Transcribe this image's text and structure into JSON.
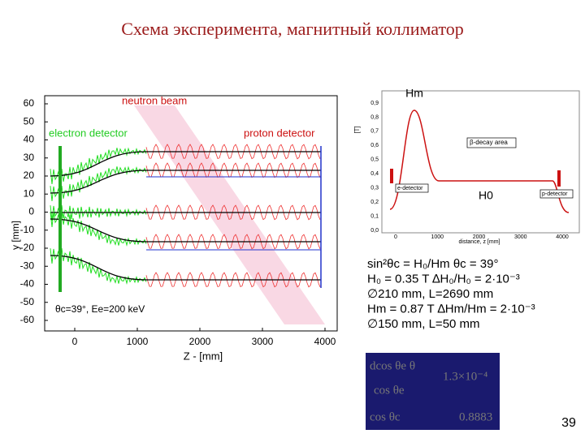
{
  "title": "Схема эксперимента, магнитный коллиматор",
  "left_plot": {
    "yticks": [
      "60",
      "50",
      "40",
      "30",
      "20",
      "10",
      "0",
      "-10",
      "-20",
      "-30",
      "-40",
      "-50",
      "-60"
    ],
    "xticks": [
      "0",
      "1000",
      "2000",
      "3000",
      "4000"
    ],
    "xlabel": "Z - [mm]",
    "ylabel": "y [mm]",
    "neutron_beam": "neutron beam",
    "electron_detector": "electron detector",
    "proton_detector": "proton detector",
    "note": "θc=39°, Ee=200 keV"
  },
  "right_plot": {
    "yticks": [
      "0,9",
      "0,8",
      "0,7",
      "0,6",
      "0,5",
      "0,4",
      "0,3",
      "0,2",
      "0,1",
      "0,0"
    ],
    "xticks": [
      "0",
      "1000",
      "2000",
      "3000",
      "4000"
    ],
    "xlabel": "distance, z [mm]",
    "ylabel": "[T]",
    "decay_area": "β-decay area",
    "e_detector": "e-detector",
    "p_detector": "p-detector",
    "hm": "Hm",
    "h0": "H0"
  },
  "formulas": [
    "sin²θc = H₀/Hm   θc = 39°",
    "H₀ = 0.35 T    ∆H₀/H₀ = 2·10⁻³",
    "∅210 mm, L=2690 mm",
    "Hm = 0.87 T    ∆Hm/Hm = 2·10⁻³",
    "∅150 mm, L=50 mm"
  ],
  "box": [
    "dcos θe   θ",
    "1.3×10⁻⁴",
    "cos θe",
    "cos θc",
    "0.8883"
  ],
  "page_number": "39"
}
